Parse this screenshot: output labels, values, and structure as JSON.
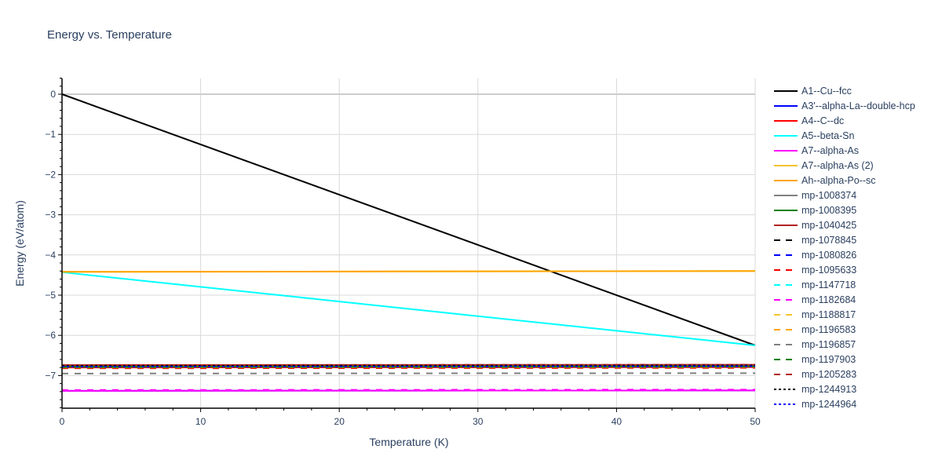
{
  "title": "Energy vs. Temperature",
  "chart_data": {
    "type": "line",
    "title": "Energy vs. Temperature",
    "xlabel": "Temperature (K)",
    "ylabel": "Energy (eV/atom)",
    "xlim": [
      0,
      50
    ],
    "ylim": [
      -7.8,
      0.4
    ],
    "x_ticks": [
      "0",
      "10",
      "20",
      "30",
      "40",
      "50"
    ],
    "y_ticks": [
      "0",
      "−1",
      "−2",
      "−3",
      "−4",
      "−5",
      "−6",
      "−7"
    ],
    "grid": true,
    "legend_position": "right",
    "x": [
      0,
      50
    ],
    "series": [
      {
        "name": "A1--Cu--fcc",
        "color": "#000000",
        "dash": "solid",
        "values": [
          0.0,
          -6.25
        ]
      },
      {
        "name": "A3'--alpha-La--double-hcp",
        "color": "#0000ff",
        "dash": "solid",
        "values": [
          -7.38,
          -7.37
        ]
      },
      {
        "name": "A4--C--dc",
        "color": "#ff0000",
        "dash": "solid",
        "values": [
          -6.8,
          -6.79
        ]
      },
      {
        "name": "A5--beta-Sn",
        "color": "#00ffff",
        "dash": "solid",
        "values": [
          -4.43,
          -6.25
        ]
      },
      {
        "name": "A7--alpha-As",
        "color": "#ff00ff",
        "dash": "solid",
        "values": [
          -7.38,
          -7.37
        ]
      },
      {
        "name": "A7--alpha-As (2)",
        "color": "#f4c430",
        "dash": "solid",
        "values": [
          -4.42,
          -4.4
        ]
      },
      {
        "name": "Ah--alpha-Po--sc",
        "color": "#ffa500",
        "dash": "solid",
        "values": [
          -4.42,
          -4.4
        ]
      },
      {
        "name": "mp-1008374",
        "color": "#808080",
        "dash": "solid",
        "values": [
          -6.77,
          -6.76
        ]
      },
      {
        "name": "mp-1008395",
        "color": "#008000",
        "dash": "solid",
        "values": [
          -6.78,
          -6.77
        ]
      },
      {
        "name": "mp-1040425",
        "color": "#b22222",
        "dash": "solid",
        "values": [
          -6.74,
          -6.73
        ]
      },
      {
        "name": "mp-1078845",
        "color": "#000000",
        "dash": "dash",
        "values": [
          -6.76,
          -6.75
        ]
      },
      {
        "name": "mp-1080826",
        "color": "#0000ff",
        "dash": "dash",
        "values": [
          -6.78,
          -6.77
        ]
      },
      {
        "name": "mp-1095633",
        "color": "#ff0000",
        "dash": "dash",
        "values": [
          -6.82,
          -6.81
        ]
      },
      {
        "name": "mp-1147718",
        "color": "#00ffff",
        "dash": "dash",
        "values": [
          -6.79,
          -6.78
        ]
      },
      {
        "name": "mp-1182684",
        "color": "#ff00ff",
        "dash": "dash",
        "values": [
          -7.36,
          -7.35
        ]
      },
      {
        "name": "mp-1188817",
        "color": "#f4c430",
        "dash": "dash",
        "values": [
          -6.79,
          -6.78
        ]
      },
      {
        "name": "mp-1196583",
        "color": "#ffa500",
        "dash": "dash",
        "values": [
          -6.8,
          -6.79
        ]
      },
      {
        "name": "mp-1196857",
        "color": "#808080",
        "dash": "dash",
        "values": [
          -6.95,
          -6.94
        ]
      },
      {
        "name": "mp-1197903",
        "color": "#008000",
        "dash": "dash",
        "values": [
          -6.79,
          -6.78
        ]
      },
      {
        "name": "mp-1205283",
        "color": "#b22222",
        "dash": "dash",
        "values": [
          -6.74,
          -6.73
        ]
      },
      {
        "name": "mp-1244913",
        "color": "#000000",
        "dash": "dot",
        "values": [
          -6.76,
          -6.75
        ]
      },
      {
        "name": "mp-1244964",
        "color": "#0000ff",
        "dash": "dot",
        "values": [
          -6.78,
          -6.77
        ]
      }
    ]
  }
}
